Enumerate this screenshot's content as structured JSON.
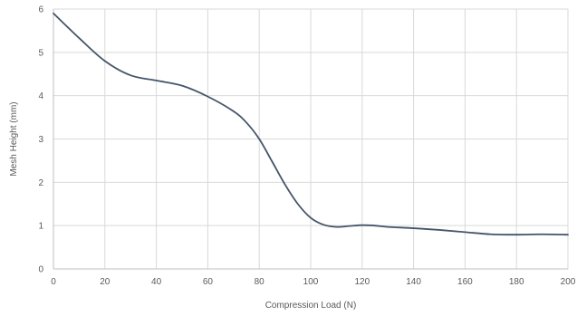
{
  "chart_data": {
    "type": "line",
    "xlabel": "Compression Load (N)",
    "ylabel": "Mesh Height (mm)",
    "xlim": [
      0,
      200
    ],
    "ylim": [
      0,
      6
    ],
    "x_ticks": [
      0,
      20,
      40,
      60,
      80,
      100,
      120,
      140,
      160,
      180,
      200
    ],
    "y_ticks": [
      0,
      1,
      2,
      3,
      4,
      5,
      6
    ],
    "grid": true,
    "legend": "none",
    "line_color": "#44546a",
    "grid_color": "#d9d9d9",
    "series": [
      {
        "x": [
          0,
          10,
          20,
          30,
          40,
          50,
          60,
          70,
          75,
          80,
          85,
          90,
          95,
          100,
          105,
          110,
          115,
          120,
          125,
          130,
          140,
          150,
          160,
          170,
          180,
          190,
          200
        ],
        "y": [
          5.9,
          5.33,
          4.8,
          4.47,
          4.35,
          4.23,
          3.98,
          3.64,
          3.38,
          3.0,
          2.48,
          1.95,
          1.5,
          1.18,
          1.02,
          0.97,
          0.99,
          1.01,
          1.0,
          0.97,
          0.94,
          0.9,
          0.85,
          0.8,
          0.79,
          0.8,
          0.79
        ]
      }
    ]
  }
}
